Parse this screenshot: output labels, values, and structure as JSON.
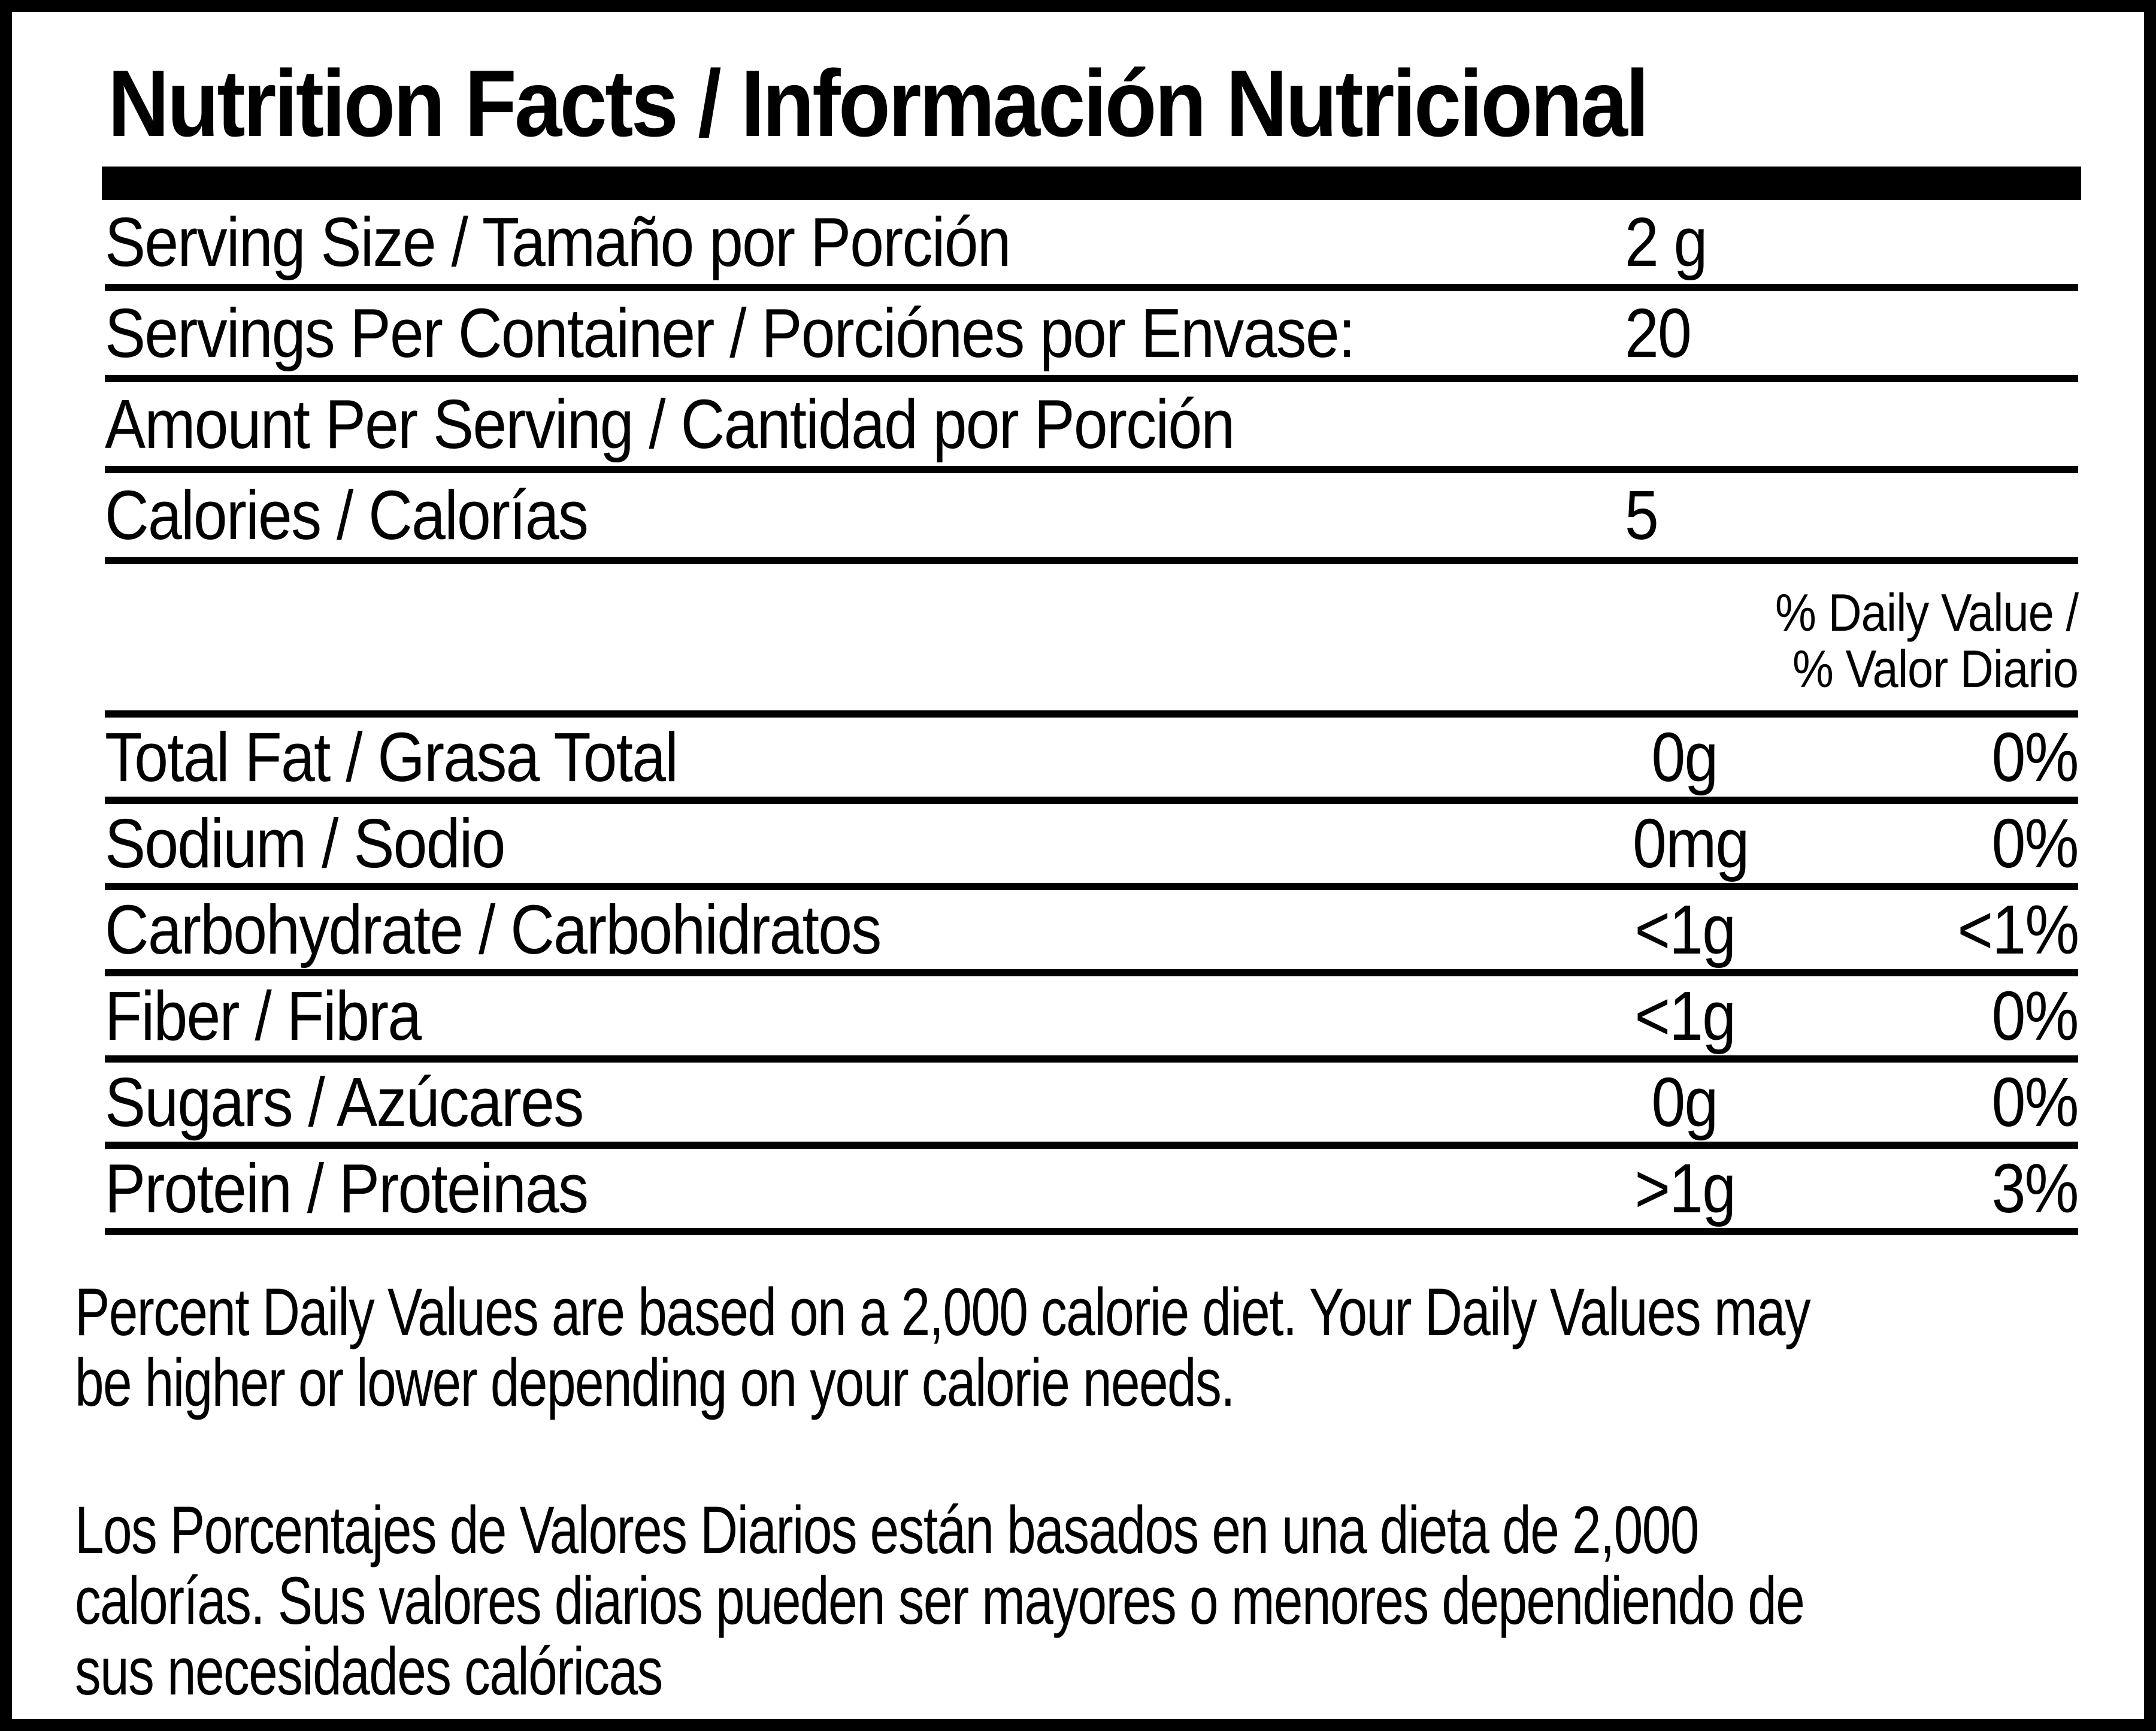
{
  "label": {
    "title": "Nutrition Facts / Información Nutricional",
    "colors": {
      "ink": "#000000",
      "paper": "#ffffff"
    },
    "serving_rows": [
      {
        "label": "Serving Size / Tamaño por Porción",
        "value": "2 g"
      },
      {
        "label": "Servings Per Container / Porciónes por Envase:",
        "value": "20"
      },
      {
        "label": "Amount Per Serving / Cantidad por Porción",
        "value": ""
      },
      {
        "label": "Calories / Calorías",
        "value": "5"
      }
    ],
    "daily_value_header": {
      "line1": "% Daily Value /",
      "line2": "% Valor Diario"
    },
    "nutrient_rows": [
      {
        "label": "Total Fat / Grasa Total",
        "amount": "0g",
        "dv": "0%"
      },
      {
        "label": "Sodium / Sodio",
        "amount": "0mg",
        "dv": "0%"
      },
      {
        "label": "Carbohydrate / Carbohidratos",
        "amount": "<1g",
        "dv": "<1%"
      },
      {
        "label": "Fiber / Fibra",
        "amount": "<1g",
        "dv": "0%"
      },
      {
        "label": "Sugars / Azúcares",
        "amount": "0g",
        "dv": "0%"
      },
      {
        "label": "Protein / Proteinas",
        "amount": ">1g",
        "dv": "3%"
      }
    ],
    "footnotes": {
      "english": "Percent Daily Values are based on a 2,000 calorie diet. Your Daily Values may\nbe higher or lower depending on your calorie needs.",
      "spanish": "Los Porcentajes de Valores Diarios están basados en una dieta de 2,000\ncalorías. Sus valores diarios pueden ser mayores o menores dependiendo de\nsus necesidades calóricas"
    }
  }
}
